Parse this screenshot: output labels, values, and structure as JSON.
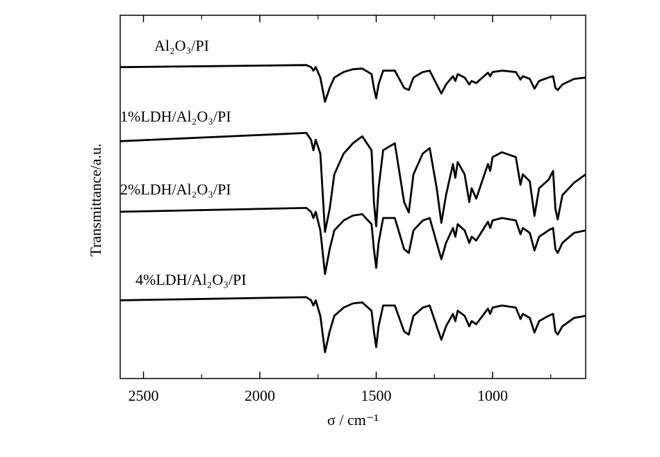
{
  "chart_data": {
    "type": "line",
    "xlabel": "σ / cm⁻¹",
    "ylabel": "Transmittance/a.u.",
    "xlim": [
      2600,
      600
    ],
    "ylim": [
      0,
      105
    ],
    "xticks": [
      2500,
      2000,
      1500,
      1000
    ],
    "xminor_ticks": [
      2250,
      1750,
      1250,
      750
    ],
    "color": "#000000",
    "x": [
      2600,
      1800,
      1780,
      1770,
      1760,
      1740,
      1720,
      1700,
      1680,
      1640,
      1600,
      1560,
      1520,
      1510,
      1500,
      1490,
      1470,
      1420,
      1380,
      1360,
      1340,
      1300,
      1270,
      1240,
      1220,
      1200,
      1170,
      1160,
      1150,
      1120,
      1100,
      1090,
      1070,
      1020,
      1010,
      1000,
      960,
      900,
      880,
      870,
      840,
      820,
      800,
      760,
      740,
      730,
      720,
      700,
      650,
      600
    ],
    "series": [
      {
        "name": "Al₂O₃/PI",
        "values": [
          90,
          90.6,
          90,
          89,
          90,
          87,
          80,
          84,
          87,
          88.6,
          89.4,
          89.6,
          88,
          84,
          81,
          85,
          89,
          89,
          84,
          83.4,
          87,
          88.6,
          89,
          85,
          82.4,
          85,
          87.4,
          86,
          88,
          87,
          85,
          86,
          85.4,
          88.4,
          87.4,
          88.6,
          89,
          88.6,
          86.4,
          87.4,
          86.6,
          83.8,
          86,
          87,
          87.4,
          84,
          83.4,
          85,
          86.6,
          87
        ]
      },
      {
        "name": "1%LDH/Al₂O₃/PI",
        "values": [
          68.6,
          71,
          69,
          66,
          69,
          65,
          42.4,
          49,
          59,
          65,
          68,
          70,
          66,
          51,
          44,
          55,
          66,
          68,
          51,
          48,
          59,
          65,
          66.6,
          55,
          45,
          53,
          62,
          58,
          62.6,
          59,
          51,
          55,
          52,
          62,
          60,
          64,
          65.4,
          64,
          56,
          59,
          57,
          47,
          55,
          57.4,
          60,
          49,
          46,
          53,
          56.6,
          59
        ]
      },
      {
        "name": "2%LDH/Al₂O₃/PI",
        "values": [
          48.2,
          49.3,
          48.2,
          46.4,
          48.2,
          42.8,
          30.2,
          37.4,
          42.8,
          45.7,
          47.1,
          47.5,
          44.6,
          37.4,
          32.0,
          39.2,
          46.4,
          46.4,
          37.4,
          36.3,
          42.8,
          45.7,
          46.4,
          39.2,
          34.5,
          39.2,
          43.5,
          41.0,
          44.6,
          42.8,
          39.2,
          41.0,
          39.9,
          45.3,
          43.5,
          45.7,
          46.4,
          45.7,
          41.7,
          43.5,
          42.1,
          37.0,
          41.0,
          42.8,
          43.5,
          37.4,
          36.3,
          39.2,
          42.1,
          42.8
        ]
      },
      {
        "name": "4%LDH/Al₂O₃/PI",
        "values": [
          22.6,
          23.5,
          22.6,
          21.1,
          22.6,
          18.1,
          7.6,
          13.6,
          18.1,
          20.5,
          21.7,
          22.0,
          19.6,
          13.6,
          9.1,
          15.1,
          21.1,
          21.1,
          13.6,
          12.7,
          18.1,
          20.5,
          21.1,
          15.1,
          11.2,
          15.1,
          18.7,
          16.6,
          19.6,
          18.1,
          15.1,
          16.6,
          15.7,
          20.2,
          18.7,
          20.5,
          21.1,
          20.5,
          17.2,
          18.7,
          17.5,
          13.3,
          16.6,
          18.1,
          18.7,
          13.6,
          12.7,
          15.1,
          17.5,
          18.1
        ]
      }
    ]
  }
}
